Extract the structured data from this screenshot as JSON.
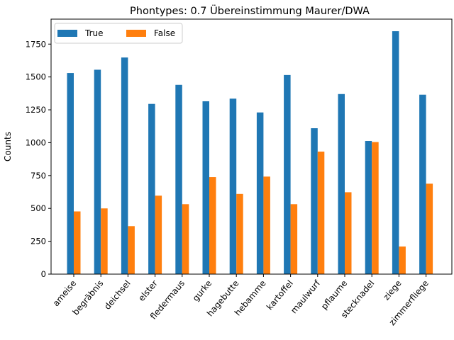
{
  "chart_data": {
    "type": "bar",
    "title": "Phontypes: 0.7 Übereinstimmung Maurer/DWA",
    "xlabel": "",
    "ylabel": "Counts",
    "ylim": [
      0,
      1940
    ],
    "yticks": [
      0,
      250,
      500,
      750,
      1000,
      1250,
      1500,
      1750
    ],
    "grid": false,
    "legend_position": "top-left",
    "categories": [
      "ameise",
      "begräbnis",
      "deichsel",
      "elster",
      "fledermaus",
      "gurke",
      "hagebutte",
      "hebamme",
      "kartoffel",
      "maulwurf",
      "pflaume",
      "stecknadel",
      "ziege",
      "zimmerfliege"
    ],
    "series": [
      {
        "name": "True",
        "color": "#1f77b4",
        "values": [
          1530,
          1555,
          1648,
          1295,
          1440,
          1315,
          1335,
          1230,
          1515,
          1110,
          1370,
          1013,
          1848,
          1365
        ]
      },
      {
        "name": "False",
        "color": "#ff7f0e",
        "values": [
          477,
          500,
          365,
          597,
          532,
          738,
          610,
          742,
          532,
          932,
          623,
          1005,
          210,
          688
        ]
      }
    ]
  }
}
